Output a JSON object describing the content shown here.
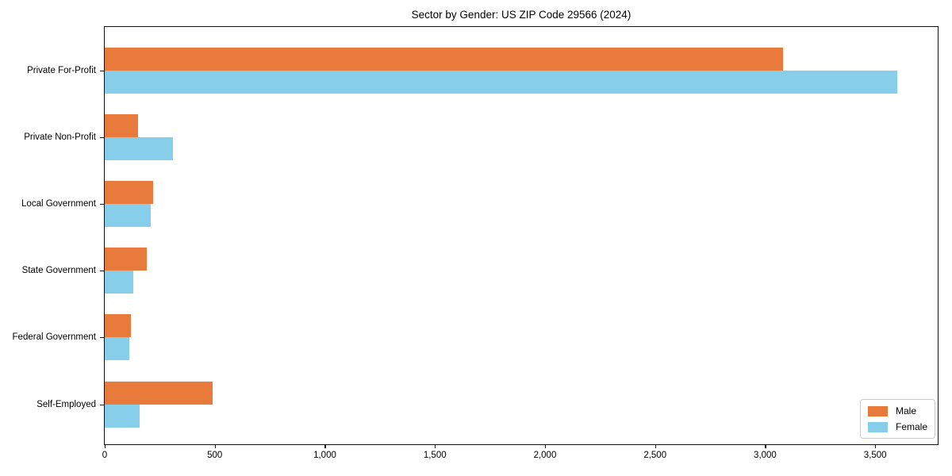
{
  "title": "Sector by Gender: US ZIP Code 29566 (2024)",
  "chart_data": {
    "type": "bar",
    "orientation": "horizontal",
    "title": "Sector by Gender: US ZIP Code 29566 (2024)",
    "categories": [
      "Private For-Profit",
      "Private Non-Profit",
      "Local Government",
      "State Government",
      "Federal Government",
      "Self-Employed"
    ],
    "series": [
      {
        "name": "Male",
        "color": "#E87A3C",
        "values": [
          3080,
          150,
          220,
          190,
          120,
          490
        ]
      },
      {
        "name": "Female",
        "color": "#87CEEB",
        "values": [
          3600,
          310,
          210,
          130,
          110,
          160
        ]
      }
    ],
    "xlim": [
      0,
      3784
    ],
    "x_ticks": [
      0,
      500,
      1000,
      1500,
      2000,
      2500,
      3000,
      3500
    ],
    "x_tick_labels": [
      "0",
      "500",
      "1,000",
      "1,500",
      "2,000",
      "2,500",
      "3,000",
      "3,500"
    ],
    "xlabel": "",
    "ylabel": "",
    "grid": false,
    "legend_position": "lower right"
  },
  "legend": {
    "items": [
      {
        "label": "Male",
        "color": "#E87A3C"
      },
      {
        "label": "Female",
        "color": "#87CEEB"
      }
    ]
  }
}
